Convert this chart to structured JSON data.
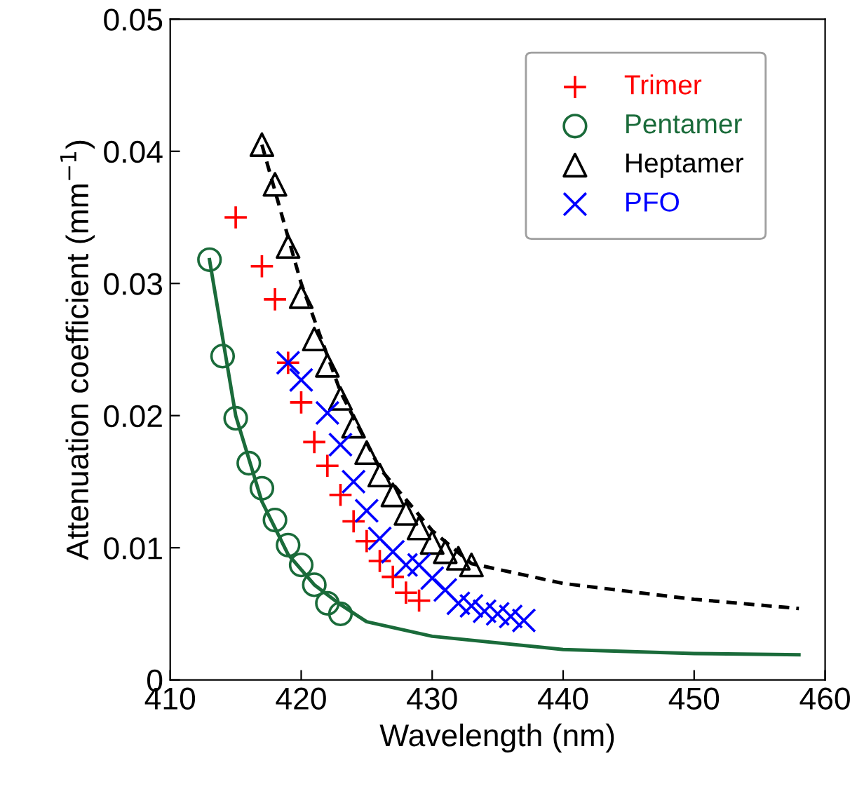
{
  "chart_data": {
    "type": "scatter",
    "xlabel": "Wavelength (nm)",
    "ylabel": "Attenuation coefficient (mm$^{−1}$)",
    "xlim": [
      410,
      460
    ],
    "xticks": [
      410,
      420,
      430,
      440,
      450,
      460
    ],
    "ylim": [
      0,
      0.05
    ],
    "yticks": [
      0,
      0.01,
      0.02,
      0.03,
      0.04,
      0.05
    ],
    "grid": false,
    "legend": "top right",
    "series": [
      {
        "name": "Trimer",
        "color": "#ff0000",
        "marker": "plus",
        "x": [
          415,
          417,
          418,
          419,
          420,
          421,
          422,
          423,
          424,
          425,
          426,
          427,
          428,
          429
        ],
        "values": [
          0.035,
          0.0313,
          0.0288,
          0.024,
          0.021,
          0.018,
          0.0162,
          0.014,
          0.012,
          0.0105,
          0.009,
          0.0078,
          0.0066,
          0.006
        ]
      },
      {
        "name": "Pentamer",
        "color": "#1a6b3a",
        "marker": "circle",
        "x": [
          413,
          414,
          415,
          416,
          417,
          418,
          419,
          420,
          421,
          422,
          423
        ],
        "values": [
          0.0318,
          0.0245,
          0.0198,
          0.0164,
          0.0145,
          0.0121,
          0.0102,
          0.0087,
          0.0072,
          0.0058,
          0.005
        ]
      },
      {
        "name": "Heptamer",
        "color": "#000000",
        "marker": "triangle",
        "x": [
          417,
          418,
          419,
          420,
          421,
          422,
          423,
          424,
          425,
          426,
          427,
          428,
          429,
          430,
          431,
          432,
          433
        ],
        "values": [
          0.0405,
          0.0375,
          0.0328,
          0.029,
          0.0258,
          0.0238,
          0.0213,
          0.0192,
          0.0172,
          0.0155,
          0.014,
          0.0126,
          0.0115,
          0.0104,
          0.0097,
          0.0092,
          0.0087
        ]
      },
      {
        "name": "PFO",
        "color": "#0000ff",
        "marker": "cross",
        "x": [
          419,
          420,
          422,
          423,
          424,
          425,
          426,
          427,
          428,
          429,
          430,
          431,
          432,
          433,
          434,
          435,
          436,
          437
        ],
        "values": [
          0.024,
          0.0227,
          0.0202,
          0.0178,
          0.015,
          0.0128,
          0.0107,
          0.0097,
          0.0087,
          0.0087,
          0.0077,
          0.0068,
          0.0058,
          0.0056,
          0.0052,
          0.005,
          0.0048,
          0.0045
        ]
      },
      {
        "type": "line",
        "color": "#1a6b3a",
        "line_style": "solid",
        "x": [
          413,
          415,
          417,
          419,
          421,
          423,
          425,
          430,
          440,
          450,
          458
        ],
        "values": [
          0.0318,
          0.02,
          0.0135,
          0.0095,
          0.0072,
          0.0057,
          0.0044,
          0.0033,
          0.0023,
          0.002,
          0.0019
        ]
      },
      {
        "type": "line",
        "color": "#000000",
        "line_style": "dashed",
        "x": [
          417,
          420,
          423,
          426,
          430,
          433,
          440,
          450,
          458
        ],
        "values": [
          0.0405,
          0.03,
          0.0218,
          0.016,
          0.0113,
          0.0088,
          0.0073,
          0.0061,
          0.0054
        ]
      }
    ]
  }
}
